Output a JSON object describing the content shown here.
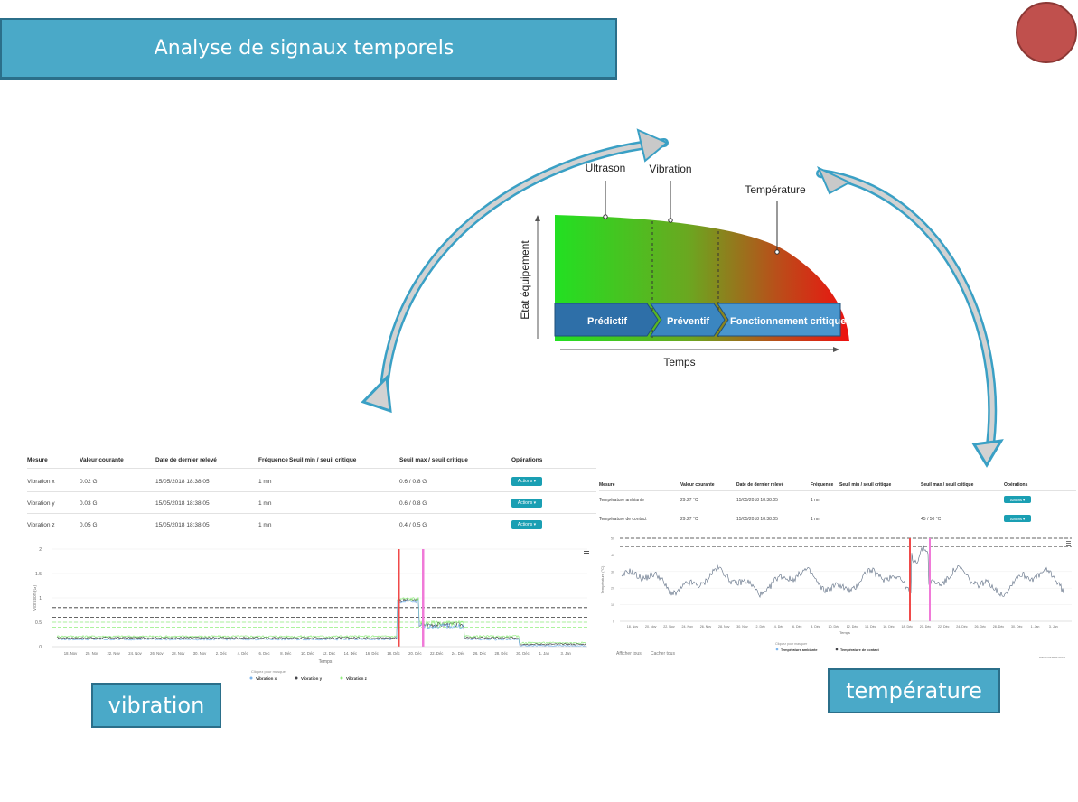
{
  "title": "Analyse de signaux temporels",
  "diagram": {
    "ylabel": "Etat équipement",
    "xlabel": "Temps",
    "markers": [
      "Ultrason",
      "Vibration",
      "Température"
    ],
    "stages": [
      "Prédictif",
      "Préventif",
      "Fonctionnement critique"
    ]
  },
  "vibration_table": {
    "headers": [
      "Mesure",
      "Valeur courante",
      "Date de dernier relevé",
      "Fréquence",
      "Seuil min / seuil critique",
      "Seuil max / seuil critique",
      "Opérations"
    ],
    "rows": [
      {
        "mesure": "Vibration x",
        "valeur": "0.02 G",
        "date": "15/05/2018 18:38:05",
        "freq": "1 mn",
        "seuil_min": "",
        "seuil_max": "0.6 / 0.8 G",
        "op": "Actions ▾"
      },
      {
        "mesure": "Vibration y",
        "valeur": "0.03 G",
        "date": "15/05/2018 18:38:05",
        "freq": "1 mn",
        "seuil_min": "",
        "seuil_max": "0.6 / 0.8 G",
        "op": "Actions ▾"
      },
      {
        "mesure": "Vibration z",
        "valeur": "0.05 G",
        "date": "15/05/2018 18:38:05",
        "freq": "1 mn",
        "seuil_min": "",
        "seuil_max": "0.4 / 0.5 G",
        "op": "Actions ▾"
      }
    ]
  },
  "temperature_table": {
    "headers": [
      "Mesure",
      "Valeur courante",
      "Date de dernier relevé",
      "Fréquence",
      "Seuil min / seuil critique",
      "Seuil max / seuil critique",
      "Opérations"
    ],
    "rows": [
      {
        "mesure": "Température ambiante",
        "valeur": "29.27 °C",
        "date": "15/05/2018 18:38:05",
        "freq": "1 mn",
        "seuil_min": "",
        "seuil_max": "",
        "op": "Actions ▾"
      },
      {
        "mesure": "Température de contact",
        "valeur": "29.27 °C",
        "date": "15/05/2018 18:38:05",
        "freq": "1 mn",
        "seuil_min": "",
        "seuil_max": "45 / 50 °C",
        "op": "Actions ▾"
      }
    ]
  },
  "vibration_chart": {
    "ylabel": "Vibration (G)",
    "xlabel": "Temps",
    "yticks": [
      "2",
      "1.5",
      "1",
      "0.5",
      "0"
    ],
    "xticks": [
      "18. Nov",
      "20. Nov",
      "22. Nov",
      "24. Nov",
      "26. Nov",
      "28. Nov",
      "30. Nov",
      "2. Déc",
      "4. Déc",
      "6. Déc",
      "8. Déc",
      "10. Déc",
      "12. Déc",
      "14. Déc",
      "16. Déc",
      "18. Déc",
      "20. Déc",
      "22. Déc",
      "24. Déc",
      "26. Déc",
      "28. Déc",
      "30. Déc",
      "1. Jan",
      "3. Jan"
    ],
    "legend_hint": "Cliquez pour masquer",
    "legend": [
      "Vibration x",
      "Vibration y",
      "Vibration z"
    ],
    "colors": {
      "x": "#7cb5ec",
      "y": "#434348",
      "z": "#90ed7d"
    }
  },
  "temperature_chart": {
    "ylabel": "Température (°C)",
    "xlabel": "Temps",
    "yticks": [
      "50",
      "40",
      "30",
      "20",
      "10",
      "0"
    ],
    "xticks": [
      "18. Nov",
      "20. Nov",
      "22. Nov",
      "24. Nov",
      "26. Nov",
      "28. Nov",
      "30. Nov",
      "2. Déc",
      "4. Déc",
      "6. Déc",
      "8. Déc",
      "10. Déc",
      "12. Déc",
      "14. Déc",
      "16. Déc",
      "18. Déc",
      "20. Déc",
      "22. Déc",
      "24. Déc",
      "26. Déc",
      "28. Déc",
      "30. Déc",
      "1. Jan",
      "3. Jan"
    ],
    "legend_hint": "Cliquez pour masquer",
    "legend": [
      "Température ambiante",
      "Température de contact"
    ],
    "buttons": [
      "Afficher tous",
      "Cacher tous"
    ],
    "credit": "www.ovuco.com"
  },
  "labels": {
    "vibration": "vibration",
    "temperature": "température"
  },
  "colors": {
    "accent": "#4aa9c8",
    "circle": "#c0504d",
    "action": "#1a9fb3"
  }
}
